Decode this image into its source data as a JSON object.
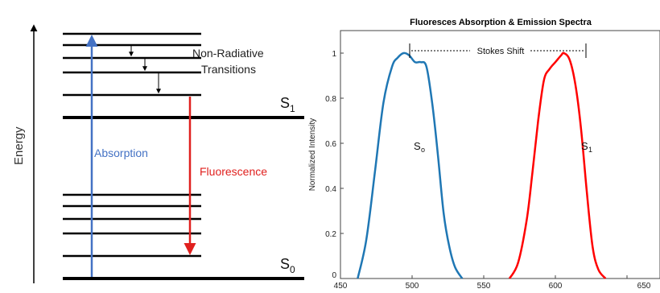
{
  "jablonski": {
    "energy_label": "Energy",
    "non_radiative_line1": "Non-Radiative",
    "non_radiative_line2": "Transitions",
    "absorption_label": "Absorption",
    "fluorescence_label": "Fluorescence",
    "s1_base": "S",
    "s1_sub": "1",
    "s0_base": "S",
    "s0_sub": "0",
    "colors": {
      "absorption": "#4472c4",
      "fluorescence": "#e0201e",
      "levels": "#000000"
    }
  },
  "spectra": {
    "title": "Fluoresces Absorption & Emission Spectra",
    "ylabel": "Normalized Intensity",
    "stokes_label": "Stokes Shift",
    "s0_base": "S",
    "s0_sub": "o",
    "s1_base": "S",
    "s1_sub": "1",
    "x_ticks": [
      "450",
      "500",
      "550",
      "600",
      "650"
    ],
    "y_ticks": [
      "0",
      "0.2",
      "0.4",
      "0.6",
      "0.8",
      "1"
    ],
    "colors": {
      "absorption": "#1f77b4",
      "emission": "#ff0000"
    }
  },
  "chart_data": {
    "type": "line",
    "title": "Fluoresces Absorption & Emission Spectra",
    "xlabel": "",
    "ylabel": "Normalized Intensity",
    "xlim": [
      450,
      650
    ],
    "ylim": [
      0,
      1.05
    ],
    "grid": false,
    "series": [
      {
        "x": [
          462,
          468,
          474,
          480,
          486,
          490,
          494,
          498,
          502,
          506,
          510,
          514,
          518,
          522,
          526,
          530,
          535
        ],
        "values": [
          0,
          0.17,
          0.47,
          0.78,
          0.94,
          0.98,
          1.0,
          0.99,
          0.96,
          0.96,
          0.94,
          0.78,
          0.55,
          0.29,
          0.14,
          0.05,
          0
        ]
      },
      {
        "x": [
          568,
          574,
          580,
          584,
          588,
          592,
          596,
          600,
          604,
          606,
          610,
          614,
          618,
          622,
          626,
          630,
          635
        ],
        "values": [
          0,
          0.07,
          0.26,
          0.47,
          0.7,
          0.88,
          0.93,
          0.96,
          0.99,
          1.0,
          0.97,
          0.86,
          0.66,
          0.38,
          0.14,
          0.04,
          0
        ]
      }
    ],
    "stokes_shift": {
      "from": 494,
      "to": 606,
      "label": "Stokes Shift"
    }
  }
}
